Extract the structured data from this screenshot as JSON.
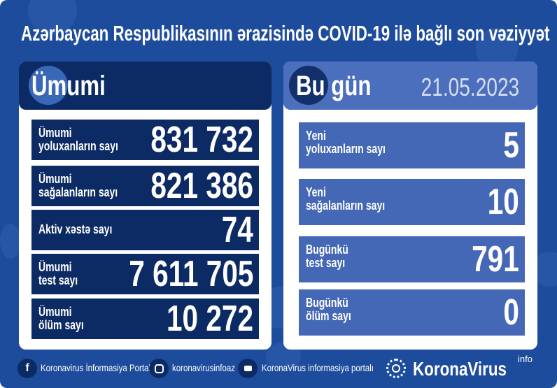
{
  "title": "Azərbaycan Respublikasının ərazisində COVID-19 ilə bağlı son vəziyyət",
  "colors": {
    "background": "#1e4c9c",
    "left_rows": "#0c2a63",
    "right_rows": "#4468b6",
    "right_header": "#4b6fbd"
  },
  "left": {
    "header": "Ümumi",
    "rows": [
      {
        "label1": "Ümumi",
        "label2": "yoluxanların sayı",
        "value": "831 732"
      },
      {
        "label1": "Ümumi",
        "label2": "sağalanların sayı",
        "value": "821 386"
      },
      {
        "label1": "Aktiv xəstə sayı",
        "label2": "",
        "value": "74"
      },
      {
        "label1": "Ümumi",
        "label2": "test sayı",
        "value": "7 611 705"
      },
      {
        "label1": "Ümumi",
        "label2": "ölüm sayı",
        "value": "10 272"
      }
    ]
  },
  "right": {
    "header": "Bu gün",
    "date": "21.05.2023",
    "rows": [
      {
        "label1": "Yeni",
        "label2": "yoluxanların sayı",
        "value": "5"
      },
      {
        "label1": "Yeni",
        "label2": "sağalanların sayı",
        "value": "10"
      },
      {
        "label1": "Bugünkü",
        "label2": "test sayı",
        "value": "791"
      },
      {
        "label1": "Bugünkü",
        "label2": "ölüm sayı",
        "value": "0"
      }
    ]
  },
  "footer": {
    "facebook": "Koronavirus İnformasiya Portalı",
    "instagram": "koronavirusinfoaz",
    "youtube": "KoronaVirus informasiya portalı",
    "logo": "KoronaVirus",
    "logo_sup": "info"
  }
}
